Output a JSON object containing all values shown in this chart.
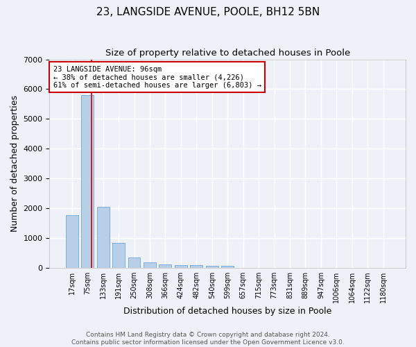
{
  "title": "23, LANGSIDE AVENUE, POOLE, BH12 5BN",
  "subtitle": "Size of property relative to detached houses in Poole",
  "xlabel": "Distribution of detached houses by size in Poole",
  "ylabel": "Number of detached properties",
  "categories": [
    "17sqm",
    "75sqm",
    "133sqm",
    "191sqm",
    "250sqm",
    "308sqm",
    "366sqm",
    "424sqm",
    "482sqm",
    "540sqm",
    "599sqm",
    "657sqm",
    "715sqm",
    "773sqm",
    "831sqm",
    "889sqm",
    "947sqm",
    "1006sqm",
    "1064sqm",
    "1122sqm",
    "1180sqm"
  ],
  "values": [
    1780,
    5800,
    2060,
    830,
    340,
    190,
    120,
    100,
    95,
    80,
    75,
    0,
    0,
    0,
    0,
    0,
    0,
    0,
    0,
    0,
    0
  ],
  "bar_color": "#b8cfe8",
  "bar_edge_color": "#5a9bd5",
  "red_line_x": 1.27,
  "red_line_color": "#cc0000",
  "ylim": [
    0,
    7000
  ],
  "yticks": [
    0,
    1000,
    2000,
    3000,
    4000,
    5000,
    6000,
    7000
  ],
  "annotation_title": "23 LANGSIDE AVENUE: 96sqm",
  "annotation_line1": "← 38% of detached houses are smaller (4,226)",
  "annotation_line2": "61% of semi-detached houses are larger (6,803) →",
  "annotation_box_facecolor": "#ffffff",
  "annotation_box_edgecolor": "#cc0000",
  "footer_line1": "Contains HM Land Registry data © Crown copyright and database right 2024.",
  "footer_line2": "Contains public sector information licensed under the Open Government Licence v3.0.",
  "background_color": "#eef2f8",
  "grid_color": "#ffffff",
  "title_fontsize": 11,
  "subtitle_fontsize": 9.5,
  "ylabel_fontsize": 9,
  "xlabel_fontsize": 9,
  "tick_fontsize": 7,
  "annotation_fontsize": 7.5,
  "footer_fontsize": 6.5
}
